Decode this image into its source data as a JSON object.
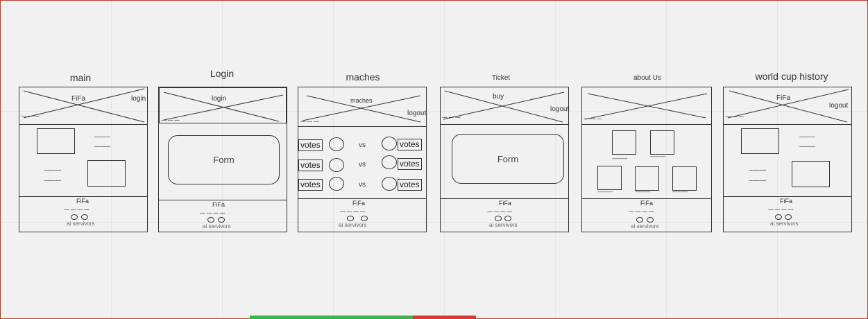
{
  "wireframes": {
    "main": {
      "title": "main",
      "header_brand": "FiFa",
      "header_action": "login",
      "nav": "---   ---   ---",
      "dash_short": "---------",
      "dash_long": "----------",
      "footer_brand": "FiFa",
      "footer_nav": "---  ---  ---  ---",
      "footer_sub": "ai servivors"
    },
    "login": {
      "title": "Login",
      "header_label": "login",
      "nav": "---   ---   ---",
      "form_label": "Form",
      "footer_brand": "FiFa",
      "footer_nav": "---  ---  ---  ---",
      "footer_sub": "ai servivors"
    },
    "matches": {
      "title": "maches",
      "header_label": "maches",
      "header_action": "logout",
      "nav": "---   ---   ---",
      "votes_label": "votes",
      "vs_label": "vs",
      "footer_brand": "FiFa",
      "footer_nav": "---  ---  ---  ---",
      "footer_sub": "ai servivors"
    },
    "ticket": {
      "title": "Ticket",
      "header_label": "buy",
      "header_action": "logout",
      "nav": "---   ---   ---",
      "form_label": "Form",
      "footer_brand": "FiFa",
      "footer_nav": "---  ---  ---  ---",
      "footer_sub": "ai servivors"
    },
    "about": {
      "title": "about Us",
      "nav": "---   ---   ---",
      "caption": "------------",
      "footer_brand": "FiFa",
      "footer_nav": "---  ---  ---  ---",
      "footer_sub": "ai servivors"
    },
    "history": {
      "title": "world cup history",
      "header_brand": "FiFa",
      "header_action": "logout",
      "nav": "---   ---   ---",
      "dash_short": "---------",
      "dash_long": "----------",
      "footer_brand": "FiFa",
      "footer_nav": "---  ---  ---  ---",
      "footer_sub": "ai servivors"
    }
  },
  "progress": {
    "green_color": "#3bb54a",
    "red_color": "#d63a2f"
  }
}
